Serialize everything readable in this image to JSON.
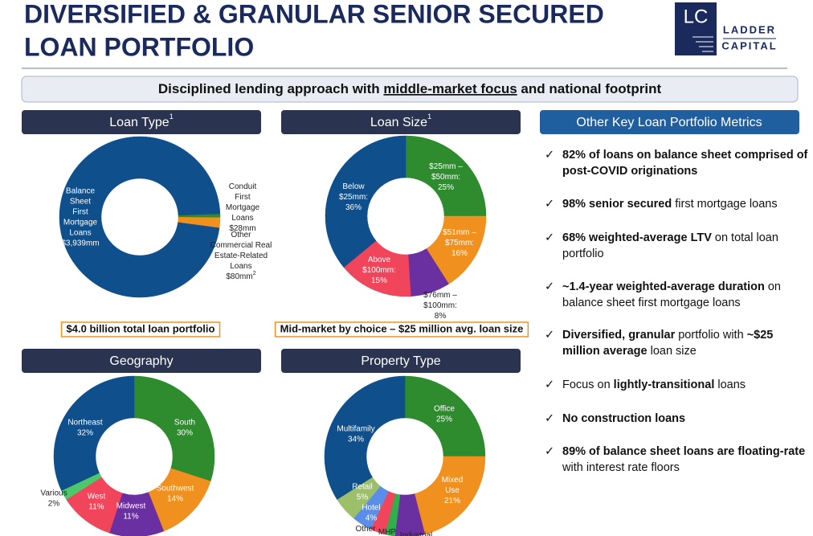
{
  "header": {
    "title": [
      "DIVERSIFIED & GRANULAR SENIOR SECURED",
      "LOAN PORTFOLIO"
    ],
    "logo": {
      "mark": "LC",
      "lines": [
        "LADDER",
        "CAPITAL"
      ]
    }
  },
  "banner": [
    "Disciplined lending approach with ",
    "middle-market focus",
    " and national footprint"
  ],
  "chart_data": [
    {
      "type": "pie",
      "donut": true,
      "title": "Loan Type",
      "title_note": "1",
      "categories": [
        "Balance Sheet First Mortgage Loans",
        "Conduit First Mortgage Loans",
        "Other Commercial Real Estate-Related Loans"
      ],
      "values": [
        3939,
        28,
        80
      ],
      "value_labels": [
        "$3,939mm",
        "$28mm",
        "$80mm"
      ],
      "label_notes": [
        null,
        null,
        "2"
      ],
      "colors": [
        "#0f4f8c",
        "#2e8b2e",
        "#f0901e"
      ],
      "caption": "$4.0 billion total loan portfolio"
    },
    {
      "type": "pie",
      "donut": true,
      "title": "Loan Size",
      "title_note": "1",
      "categories": [
        "$25mm – $50mm:",
        "$51mm – $75mm:",
        "$76mm – $100mm:",
        "Above $100mm:",
        "Below $25mm:"
      ],
      "values": [
        25,
        16,
        8,
        15,
        36
      ],
      "value_labels": [
        "25%",
        "16%",
        "8%",
        "15%",
        "36%"
      ],
      "colors": [
        "#2e8b2e",
        "#f0901e",
        "#6a2fa0",
        "#f0455a",
        "#0f4f8c"
      ],
      "caption": "Mid-market by choice – $25 million avg. loan size"
    },
    {
      "type": "pie",
      "donut": true,
      "title": "Geography",
      "categories": [
        "South",
        "Southwest",
        "Midwest",
        "West",
        "Various",
        "Northeast"
      ],
      "values": [
        30,
        14,
        11,
        11,
        2,
        32
      ],
      "value_labels": [
        "30%",
        "14%",
        "11%",
        "11%",
        "2%",
        "32%"
      ],
      "colors": [
        "#2e8b2e",
        "#f0901e",
        "#6a2fa0",
        "#f0455a",
        "#4cc86a",
        "#0f4f8c"
      ]
    },
    {
      "type": "pie",
      "donut": true,
      "title": "Property Type",
      "categories": [
        "Office",
        "Mixed Use",
        "Industrial",
        "MHP",
        "Other",
        "Hotel",
        "Retail",
        "Multifamily"
      ],
      "values": [
        25,
        21,
        6,
        2,
        3,
        4,
        5,
        34
      ],
      "value_labels": [
        "25%",
        "21%",
        null,
        null,
        null,
        "4%",
        "5%",
        "34%"
      ],
      "colors": [
        "#2e8b2e",
        "#f0901e",
        "#6a2fa0",
        "#2fb04a",
        "#f0455a",
        "#5b8ee8",
        "#9cbf6a",
        "#0f4f8c"
      ]
    }
  ],
  "metrics": {
    "title": "Other Key Loan Portfolio Metrics",
    "items": [
      [
        {
          "text": "82% of loans on balance sheet comprised of post-COVID originations",
          "bold": true
        }
      ],
      [
        {
          "text": "98% senior secured",
          "bold": true
        },
        {
          "text": " first mortgage loans",
          "bold": false
        }
      ],
      [
        {
          "text": "68% weighted-average LTV",
          "bold": true
        },
        {
          "text": " on total loan portfolio",
          "bold": false
        }
      ],
      [
        {
          "text": "~1.4-year weighted-average duration",
          "bold": true
        },
        {
          "text": " on balance sheet first mortgage loans",
          "bold": false
        }
      ],
      [
        {
          "text": "Diversified, granular",
          "bold": true
        },
        {
          "text": " portfolio with ",
          "bold": false
        },
        {
          "text": "~$25 million average",
          "bold": true
        },
        {
          "text": " loan size",
          "bold": false
        }
      ],
      [
        {
          "text": "Focus on ",
          "bold": false
        },
        {
          "text": "lightly-transitional",
          "bold": true
        },
        {
          "text": " loans",
          "bold": false
        }
      ],
      [
        {
          "text": "No construction loans",
          "bold": true
        }
      ],
      [
        {
          "text": "89% of balance sheet loans are floating-rate",
          "bold": true
        },
        {
          "text": " with interest rate floors",
          "bold": false
        }
      ]
    ]
  }
}
